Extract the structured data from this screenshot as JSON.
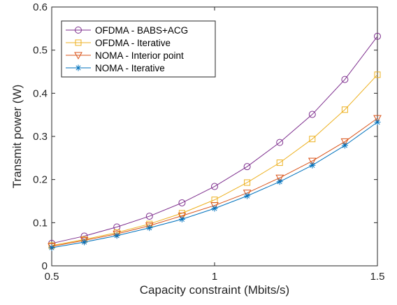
{
  "chart_data": {
    "type": "line",
    "title": "",
    "xlabel": "Capacity constraint (Mbits/s)",
    "ylabel": "Transmit power (W)",
    "xlim": [
      0.5,
      1.5
    ],
    "ylim": [
      0,
      0.6
    ],
    "xticks": [
      0.5,
      1,
      1.5
    ],
    "xtick_labels": [
      "0.5",
      "1",
      "1.5"
    ],
    "yticks": [
      0,
      0.1,
      0.2,
      0.3,
      0.4,
      0.5,
      0.6
    ],
    "ytick_labels": [
      "0",
      "0.1",
      "0.2",
      "0.3",
      "0.4",
      "0.5",
      "0.6"
    ],
    "grid": false,
    "legend_position": "top-left",
    "x": [
      0.5,
      0.6,
      0.7,
      0.8,
      0.9,
      1.0,
      1.1,
      1.2,
      1.3,
      1.4,
      1.5
    ],
    "series": [
      {
        "name": "OFDMA - BABS+ACG",
        "color": "#7e2f8e",
        "marker": "circle",
        "values": [
          0.052,
          0.069,
          0.09,
          0.115,
          0.146,
          0.184,
          0.23,
          0.286,
          0.351,
          0.432,
          0.532
        ]
      },
      {
        "name": "OFDMA - Iterative",
        "color": "#edb120",
        "marker": "square",
        "values": [
          0.047,
          0.061,
          0.077,
          0.097,
          0.122,
          0.153,
          0.193,
          0.239,
          0.294,
          0.362,
          0.443
        ]
      },
      {
        "name": "NOMA - Interior point",
        "color": "#d95319",
        "marker": "triangle-down",
        "values": [
          0.045,
          0.059,
          0.074,
          0.093,
          0.116,
          0.14,
          0.169,
          0.204,
          0.243,
          0.288,
          0.342
        ]
      },
      {
        "name": "NOMA - Iterative",
        "color": "#0072bd",
        "marker": "asterisk",
        "values": [
          0.042,
          0.055,
          0.07,
          0.088,
          0.108,
          0.133,
          0.162,
          0.195,
          0.233,
          0.279,
          0.333
        ]
      }
    ]
  }
}
